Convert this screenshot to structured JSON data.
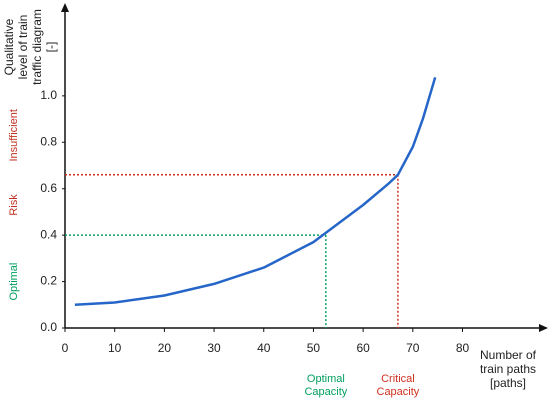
{
  "chart_data": {
    "type": "line",
    "y_label": [
      "Qualitative",
      "level of train",
      "traffic diagram",
      "[-]"
    ],
    "x_label": [
      "Number of",
      "train paths",
      "[paths]"
    ],
    "x": [
      2,
      10,
      20,
      30,
      40,
      50,
      55,
      60,
      65,
      67,
      70,
      72,
      74.5
    ],
    "series": [
      {
        "color": "#2566c8",
        "values": [
          0.1,
          0.11,
          0.14,
          0.19,
          0.26,
          0.37,
          0.45,
          0.53,
          0.62,
          0.66,
          0.78,
          0.9,
          1.08
        ]
      }
    ],
    "xlim": [
      0,
      96
    ],
    "ylim": [
      0,
      1.4
    ],
    "xticks": [
      0,
      10,
      20,
      30,
      40,
      50,
      60,
      70,
      80
    ],
    "yticks": [
      {
        "value": 0,
        "label": "0.0"
      },
      0.2,
      0.4,
      0.6,
      0.8,
      {
        "value": 1,
        "label": "1.0"
      }
    ],
    "markers": [
      {
        "x": 52.5,
        "y": 0.4,
        "color": "#00a060",
        "label": [
          "Optimal",
          "Capacity"
        ]
      },
      {
        "x": 67,
        "y": 0.66,
        "color": "#d03020",
        "label": [
          "Critical",
          "Capacity"
        ]
      }
    ],
    "zones": [
      {
        "label": "Optimal",
        "range": [
          0,
          0.4
        ],
        "color": "#00a060"
      },
      {
        "label": "Risk",
        "range": [
          0.4,
          0.66
        ],
        "color": "#c03020"
      },
      {
        "label": "Insufficient",
        "range": [
          0.66,
          1
        ],
        "color": "#c03020"
      }
    ]
  }
}
